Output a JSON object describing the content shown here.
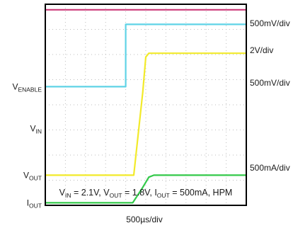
{
  "chart_data": {
    "type": "line",
    "title": "",
    "xlabel": "500µs/div",
    "ylabel": "",
    "grid": true,
    "x_divisions": 10,
    "y_divisions": 8,
    "x_unit": "div",
    "y_unit": "div",
    "xlim": [
      0,
      10
    ],
    "ylim": [
      0,
      8
    ],
    "conditions": {
      "parts": [
        {
          "t": "V"
        },
        {
          "s": "IN"
        },
        {
          "t": " = 2.1V, V"
        },
        {
          "s": "OUT"
        },
        {
          "t": " = 1.8V, I"
        },
        {
          "s": "OUT"
        },
        {
          "t": " = 500mA, HPM"
        }
      ]
    },
    "series": [
      {
        "name": "",
        "color": "#cc3a78",
        "channel_label": {
          "main": "V",
          "sub": "IN"
        },
        "scale": "500mV/div",
        "x": [
          0,
          10
        ],
        "y": [
          7.78,
          7.78
        ]
      },
      {
        "name": "",
        "color": "#5fd3e6",
        "channel_label": {
          "main": "V",
          "sub": "ENABLE"
        },
        "scale": "2V/div",
        "x": [
          0,
          4.0,
          4.0,
          10
        ],
        "y": [
          4.72,
          4.72,
          7.2,
          7.2
        ]
      },
      {
        "name": "",
        "color": "#f2ea2a",
        "channel_label": {
          "main": "V",
          "sub": "OUT"
        },
        "scale": "500mV/div",
        "x": [
          0,
          4.4,
          4.85,
          5.0,
          5.15,
          10
        ],
        "y": [
          1.2,
          1.2,
          4.5,
          5.9,
          6.05,
          6.05
        ]
      },
      {
        "name": "",
        "color": "#33c94a",
        "channel_label": {
          "main": "I",
          "sub": "OUT"
        },
        "scale": "500mA/div",
        "x": [
          0,
          4.35,
          4.8,
          5.15,
          5.4,
          10
        ],
        "y": [
          0.1,
          0.1,
          0.65,
          1.12,
          1.2,
          1.2
        ]
      }
    ]
  }
}
